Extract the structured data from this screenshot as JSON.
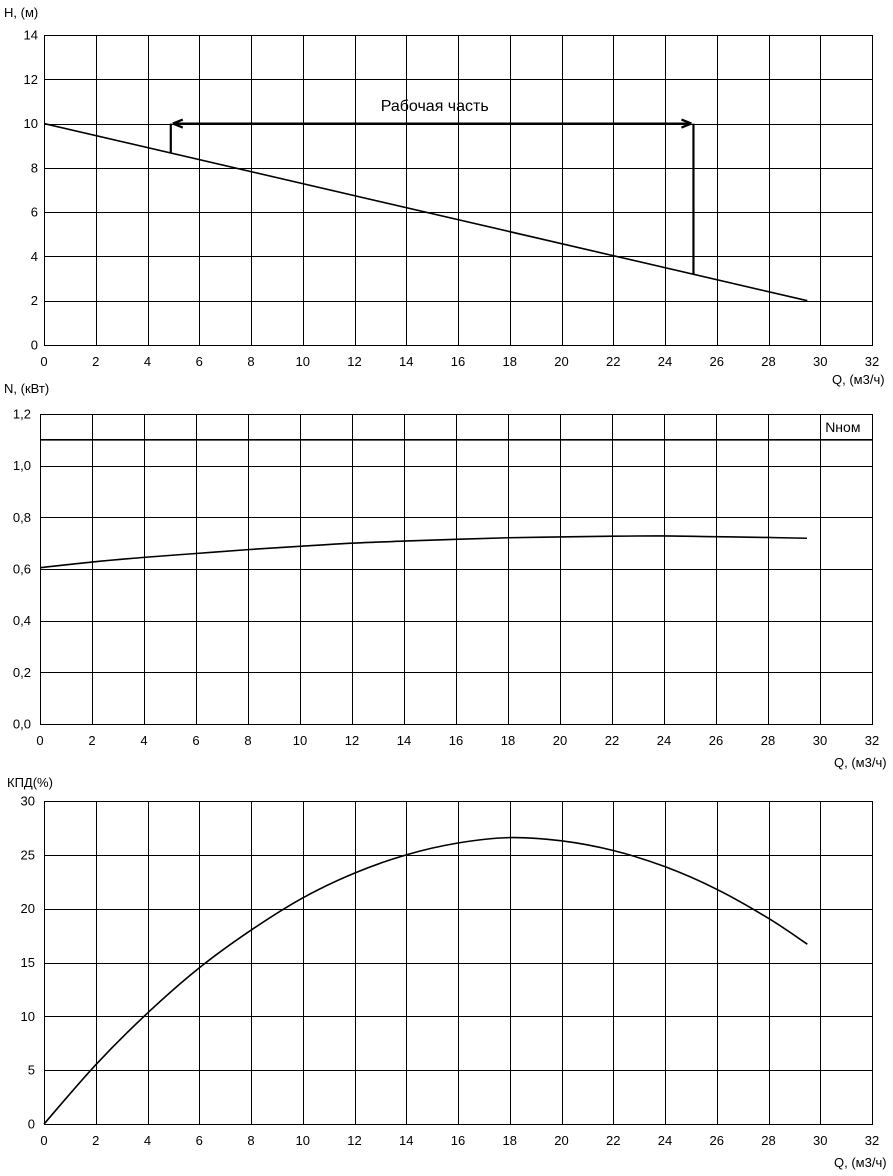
{
  "chart_data": [
    {
      "type": "line",
      "ylabel": "H, (м)",
      "xlabel": "Q, (м3/ч)",
      "xlim": [
        0,
        32
      ],
      "ylim": [
        0,
        14
      ],
      "xticks": [
        "0",
        "2",
        "4",
        "6",
        "8",
        "10",
        "12",
        "14",
        "16",
        "18",
        "20",
        "22",
        "24",
        "26",
        "28",
        "30",
        "32"
      ],
      "yticks": [
        "0",
        "2",
        "4",
        "6",
        "8",
        "10",
        "12",
        "14"
      ],
      "grid": true,
      "series": [
        {
          "x": [
            0,
            29.5
          ],
          "y": [
            10,
            2
          ]
        }
      ],
      "annotations": [
        {
          "text": "Рабочая часть",
          "x": 15.1,
          "y": 10.85,
          "range_x": [
            4.9,
            25.1
          ],
          "level_y": 10
        }
      ]
    },
    {
      "type": "line",
      "ylabel": "N, (кВт)",
      "xlabel": "Q, (м3/ч)",
      "xlim": [
        0,
        32
      ],
      "ylim": [
        0,
        1.2
      ],
      "xticks": [
        "0",
        "2",
        "4",
        "6",
        "8",
        "10",
        "12",
        "14",
        "16",
        "18",
        "20",
        "22",
        "24",
        "26",
        "28",
        "30",
        "32"
      ],
      "yticks": [
        "0,0",
        "0,2",
        "0,4",
        "0,6",
        "0,8",
        "1,0",
        "1,2"
      ],
      "grid": true,
      "series": [
        {
          "x": [
            0,
            2,
            4,
            6,
            8,
            10,
            12,
            14,
            16,
            18,
            20,
            22,
            24,
            26,
            28,
            29.5
          ],
          "y": [
            0.605,
            0.627,
            0.645,
            0.66,
            0.675,
            0.688,
            0.7,
            0.708,
            0.715,
            0.721,
            0.724,
            0.727,
            0.728,
            0.725,
            0.722,
            0.719
          ]
        },
        {
          "name": "Nном",
          "x": [
            0,
            32
          ],
          "y": [
            1.1,
            1.1
          ]
        }
      ]
    },
    {
      "type": "line",
      "ylabel": "КПД(%)",
      "xlabel": "Q, (м3/ч)",
      "xlim": [
        0,
        32
      ],
      "ylim": [
        0,
        30
      ],
      "xticks": [
        "0",
        "2",
        "4",
        "6",
        "8",
        "10",
        "12",
        "14",
        "16",
        "18",
        "20",
        "22",
        "24",
        "26",
        "28",
        "30",
        "32"
      ],
      "yticks": [
        "0",
        "5",
        "10",
        "15",
        "20",
        "25",
        "30"
      ],
      "grid": true,
      "series": [
        {
          "x": [
            0,
            2,
            4,
            6,
            8,
            10,
            12,
            14,
            16,
            18,
            20,
            22,
            24,
            26,
            28,
            29.5
          ],
          "y": [
            0,
            5.5,
            10.3,
            14.5,
            18.0,
            21.0,
            23.3,
            25.0,
            26.1,
            26.6,
            26.3,
            25.4,
            23.9,
            21.8,
            19.1,
            16.7
          ]
        }
      ]
    }
  ]
}
